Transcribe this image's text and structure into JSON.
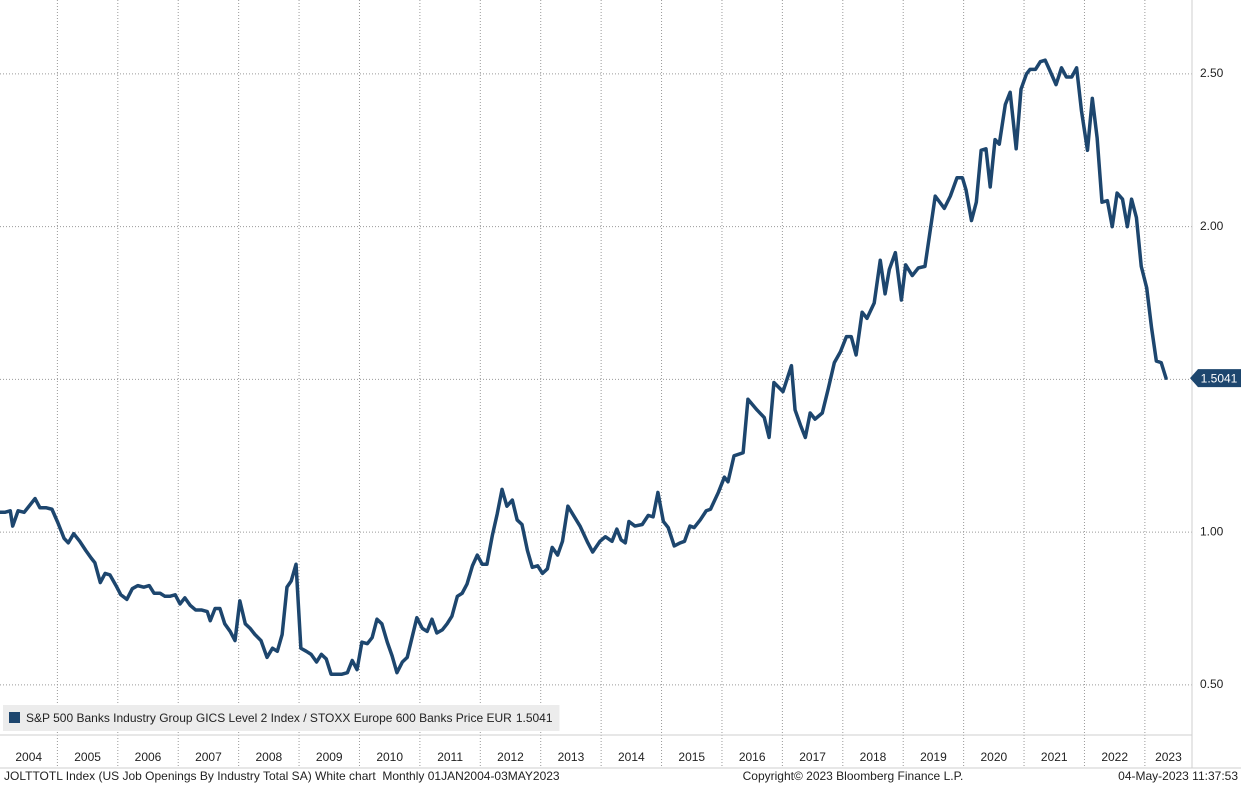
{
  "chart_data": {
    "type": "line",
    "series": [
      {
        "name": "S&P 500 Banks Industry Group GICS Level 2 Index / STOXX Europe 600 Banks Price EUR",
        "color": "#1d466e",
        "x": [
          2004.05,
          2004.13,
          2004.22,
          2004.26,
          2004.35,
          2004.45,
          2004.55,
          2004.63,
          2004.71,
          2004.81,
          2004.91,
          2005.01,
          2005.11,
          2005.18,
          2005.27,
          2005.37,
          2005.47,
          2005.56,
          2005.62,
          2005.71,
          2005.79,
          2005.87,
          2005.97,
          2006.05,
          2006.15,
          2006.24,
          2006.33,
          2006.43,
          2006.52,
          2006.6,
          2006.7,
          2006.78,
          2006.86,
          2006.95,
          2007.03,
          2007.11,
          2007.2,
          2007.29,
          2007.39,
          2007.48,
          2007.53,
          2007.61,
          2007.69,
          2007.77,
          2007.86,
          2007.94,
          2008.02,
          2008.11,
          2008.19,
          2008.27,
          2008.37,
          2008.47,
          2008.56,
          2008.64,
          2008.72,
          2008.8,
          2008.87,
          2008.95,
          2009.03,
          2009.12,
          2009.2,
          2009.29,
          2009.37,
          2009.45,
          2009.53,
          2009.63,
          2009.71,
          2009.8,
          2009.88,
          2009.96,
          2010.04,
          2010.13,
          2010.21,
          2010.29,
          2010.37,
          2010.46,
          2010.54,
          2010.62,
          2010.71,
          2010.79,
          2010.87,
          2010.95,
          2011.04,
          2011.12,
          2011.2,
          2011.28,
          2011.37,
          2011.45,
          2011.53,
          2011.62,
          2011.7,
          2011.78,
          2011.87,
          2011.95,
          2012.03,
          2012.11,
          2012.2,
          2012.28,
          2012.36,
          2012.44,
          2012.53,
          2012.61,
          2012.69,
          2012.78,
          2012.86,
          2012.95,
          2013.03,
          2013.11,
          2013.19,
          2013.28,
          2013.36,
          2013.45,
          2013.65,
          2013.78,
          2013.86,
          2013.98,
          2014.07,
          2014.18,
          2014.26,
          2014.33,
          2014.4,
          2014.46,
          2014.56,
          2014.68,
          2014.78,
          2014.86,
          2014.94,
          2015.03,
          2015.11,
          2015.21,
          2015.31,
          2015.38,
          2015.47,
          2015.54,
          2015.64,
          2015.74,
          2015.81,
          2015.94,
          2016.04,
          2016.1,
          2016.2,
          2016.35,
          2016.43,
          2016.58,
          2016.7,
          2016.78,
          2016.86,
          2017.01,
          2017.15,
          2017.21,
          2017.3,
          2017.38,
          2017.46,
          2017.54,
          2017.66,
          2017.76,
          2017.86,
          2017.96,
          2018.06,
          2018.14,
          2018.22,
          2018.32,
          2018.4,
          2018.52,
          2018.62,
          2018.7,
          2018.77,
          2018.87,
          2018.97,
          2019.04,
          2019.15,
          2019.25,
          2019.36,
          2019.53,
          2019.68,
          2019.78,
          2019.89,
          2019.98,
          2020.04,
          2020.13,
          2020.21,
          2020.29,
          2020.37,
          2020.44,
          2020.52,
          2020.59,
          2020.69,
          2020.77,
          2020.87,
          2020.95,
          2021.04,
          2021.1,
          2021.19,
          2021.27,
          2021.35,
          2021.43,
          2021.53,
          2021.62,
          2021.7,
          2021.79,
          2021.87,
          2021.95,
          2022.05,
          2022.13,
          2022.21,
          2022.29,
          2022.38,
          2022.46,
          2022.54,
          2022.63,
          2022.71,
          2022.78,
          2022.86,
          2022.94,
          2023.03,
          2023.11,
          2023.19,
          2023.27,
          2023.35
        ],
        "values": [
          1.065,
          1.065,
          1.07,
          1.02,
          1.07,
          1.065,
          1.09,
          1.11,
          1.08,
          1.08,
          1.075,
          1.03,
          0.98,
          0.965,
          0.995,
          0.97,
          0.94,
          0.915,
          0.9,
          0.835,
          0.865,
          0.86,
          0.825,
          0.795,
          0.78,
          0.815,
          0.825,
          0.82,
          0.825,
          0.8,
          0.8,
          0.79,
          0.79,
          0.795,
          0.765,
          0.785,
          0.76,
          0.745,
          0.745,
          0.74,
          0.71,
          0.75,
          0.75,
          0.7,
          0.675,
          0.645,
          0.775,
          0.7,
          0.685,
          0.665,
          0.645,
          0.59,
          0.62,
          0.61,
          0.665,
          0.82,
          0.84,
          0.895,
          0.62,
          0.61,
          0.6,
          0.575,
          0.6,
          0.585,
          0.535,
          0.535,
          0.535,
          0.54,
          0.58,
          0.55,
          0.64,
          0.635,
          0.655,
          0.715,
          0.7,
          0.64,
          0.595,
          0.54,
          0.575,
          0.59,
          0.655,
          0.72,
          0.685,
          0.675,
          0.715,
          0.67,
          0.68,
          0.7,
          0.725,
          0.79,
          0.8,
          0.83,
          0.89,
          0.925,
          0.895,
          0.895,
          0.99,
          1.06,
          1.14,
          1.085,
          1.105,
          1.04,
          1.025,
          0.94,
          0.885,
          0.89,
          0.865,
          0.88,
          0.95,
          0.925,
          0.97,
          1.085,
          1.02,
          0.965,
          0.935,
          0.97,
          0.985,
          0.97,
          1.01,
          0.975,
          0.965,
          1.035,
          1.02,
          1.025,
          1.055,
          1.05,
          1.13,
          1.035,
          1.015,
          0.955,
          0.965,
          0.97,
          1.02,
          1.015,
          1.04,
          1.07,
          1.075,
          1.13,
          1.18,
          1.165,
          1.25,
          1.26,
          1.435,
          1.4,
          1.375,
          1.31,
          1.49,
          1.46,
          1.545,
          1.4,
          1.35,
          1.31,
          1.39,
          1.37,
          1.39,
          1.47,
          1.555,
          1.59,
          1.64,
          1.64,
          1.58,
          1.72,
          1.7,
          1.75,
          1.89,
          1.78,
          1.86,
          1.915,
          1.76,
          1.875,
          1.84,
          1.865,
          1.87,
          2.1,
          2.06,
          2.1,
          2.16,
          2.16,
          2.12,
          2.02,
          2.08,
          2.25,
          2.255,
          2.13,
          2.285,
          2.27,
          2.4,
          2.44,
          2.255,
          2.45,
          2.5,
          2.515,
          2.515,
          2.54,
          2.545,
          2.51,
          2.465,
          2.52,
          2.49,
          2.49,
          2.52,
          2.38,
          2.25,
          2.42,
          2.29,
          2.08,
          2.085,
          2.0,
          2.11,
          2.09,
          2.0,
          2.09,
          2.03,
          1.87,
          1.8,
          1.67,
          1.56,
          1.555,
          1.5041
        ]
      }
    ],
    "xlim": [
      2004.05,
      2023.78
    ],
    "xticks": [
      2004,
      2005,
      2006,
      2007,
      2008,
      2009,
      2010,
      2011,
      2012,
      2013,
      2014,
      2015,
      2016,
      2017,
      2018,
      2019,
      2020,
      2021,
      2022,
      2023
    ],
    "ylim": [
      0.336,
      2.742
    ],
    "yticks": [
      {
        "value": 0.5,
        "label": "0.50"
      },
      {
        "value": 1.0,
        "label": "1.00"
      },
      {
        "value": 1.5,
        "label": "1.50"
      },
      {
        "value": 2.0,
        "label": "2.00"
      },
      {
        "value": 2.5,
        "label": "2.50"
      }
    ],
    "grid": true,
    "legend": "bottom-left",
    "source": "JOLTTOTL Index (US Job Openings By Industry Total SA) White chart  Monthly 01JAN2004-03MAY2023",
    "copyright": "Copyright© 2023 Bloomberg Finance L.P.",
    "timestamp": "04-May-2023 11:37:53"
  }
}
